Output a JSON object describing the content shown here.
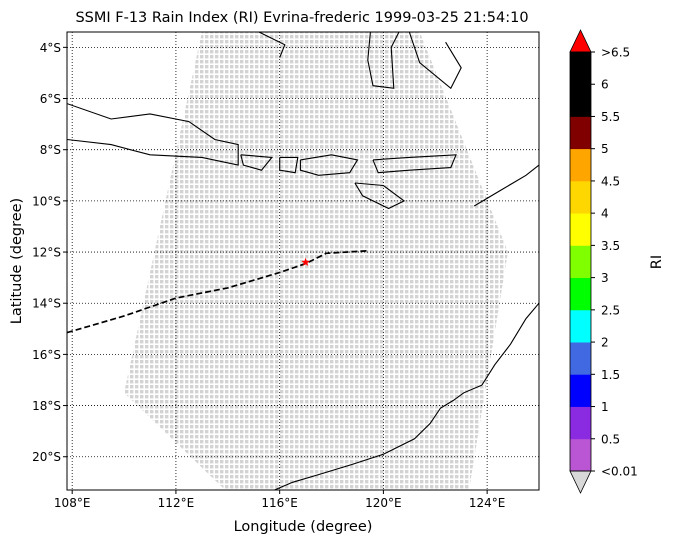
{
  "chart_data": {
    "type": "map",
    "title": "SSMI F-13 Rain Index (RI) Evrina-frederic 1999-03-25 21:54:10",
    "xlabel": "Longitude (degree)",
    "ylabel": "Latitude (degree)",
    "xlim": [
      107.8,
      126.0
    ],
    "ylim": [
      -21.3,
      -3.4
    ],
    "xticks": [
      {
        "value": 108,
        "label": "108°E"
      },
      {
        "value": 112,
        "label": "112°E"
      },
      {
        "value": 116,
        "label": "116°E"
      },
      {
        "value": 120,
        "label": "120°E"
      },
      {
        "value": 124,
        "label": "124°E"
      }
    ],
    "yticks": [
      {
        "value": -4,
        "label": "4°S"
      },
      {
        "value": -6,
        "label": "6°S"
      },
      {
        "value": -8,
        "label": "8°S"
      },
      {
        "value": -10,
        "label": "10°S"
      },
      {
        "value": -12,
        "label": "12°S"
      },
      {
        "value": -14,
        "label": "14°S"
      },
      {
        "value": -16,
        "label": "16°S"
      },
      {
        "value": -18,
        "label": "18°S"
      },
      {
        "value": -20,
        "label": "20°S"
      }
    ],
    "grid": true,
    "swath": {
      "color": "#d3d3d3",
      "corners": [
        {
          "lon": 113.0,
          "lat": -3.4
        },
        {
          "lon": 121.4,
          "lat": -3.4
        },
        {
          "lon": 124.8,
          "lat": -12.0
        },
        {
          "lon": 123.3,
          "lat": -21.3
        },
        {
          "lon": 113.9,
          "lat": -21.3
        },
        {
          "lon": 110.0,
          "lat": -17.5
        }
      ]
    },
    "track": {
      "style": "dashed",
      "color": "#000000",
      "points": [
        {
          "lon": 107.8,
          "lat": -15.15
        },
        {
          "lon": 110.0,
          "lat": -14.5
        },
        {
          "lon": 112.0,
          "lat": -13.8
        },
        {
          "lon": 114.0,
          "lat": -13.4
        },
        {
          "lon": 116.0,
          "lat": -12.8
        },
        {
          "lon": 117.0,
          "lat": -12.45
        },
        {
          "lon": 117.8,
          "lat": -12.05
        },
        {
          "lon": 119.4,
          "lat": -11.95
        }
      ]
    },
    "marker": {
      "lon": 117.0,
      "lat": -12.4,
      "symbol": "star",
      "color": "#ff0000"
    },
    "coastlines": [
      [
        {
          "lon": 107.8,
          "lat": -6.2
        },
        {
          "lon": 109.5,
          "lat": -6.8
        },
        {
          "lon": 111.0,
          "lat": -6.6
        },
        {
          "lon": 112.5,
          "lat": -6.9
        },
        {
          "lon": 113.5,
          "lat": -7.6
        },
        {
          "lon": 114.4,
          "lat": -7.8
        },
        {
          "lon": 114.4,
          "lat": -8.6
        },
        {
          "lon": 113.0,
          "lat": -8.3
        },
        {
          "lon": 111.0,
          "lat": -8.2
        },
        {
          "lon": 109.5,
          "lat": -7.8
        },
        {
          "lon": 107.8,
          "lat": -7.6
        }
      ],
      [
        {
          "lon": 114.5,
          "lat": -8.2
        },
        {
          "lon": 115.7,
          "lat": -8.3
        },
        {
          "lon": 115.3,
          "lat": -8.8
        },
        {
          "lon": 114.6,
          "lat": -8.6
        },
        {
          "lon": 114.5,
          "lat": -8.2
        }
      ],
      [
        {
          "lon": 116.0,
          "lat": -8.3
        },
        {
          "lon": 116.7,
          "lat": -8.3
        },
        {
          "lon": 116.6,
          "lat": -8.9
        },
        {
          "lon": 116.0,
          "lat": -8.8
        },
        {
          "lon": 116.0,
          "lat": -8.3
        }
      ],
      [
        {
          "lon": 116.8,
          "lat": -8.4
        },
        {
          "lon": 118.0,
          "lat": -8.2
        },
        {
          "lon": 119.0,
          "lat": -8.4
        },
        {
          "lon": 118.7,
          "lat": -8.9
        },
        {
          "lon": 117.5,
          "lat": -9.0
        },
        {
          "lon": 116.8,
          "lat": -8.8
        },
        {
          "lon": 116.8,
          "lat": -8.4
        }
      ],
      [
        {
          "lon": 119.6,
          "lat": -8.4
        },
        {
          "lon": 121.0,
          "lat": -8.3
        },
        {
          "lon": 122.8,
          "lat": -8.2
        },
        {
          "lon": 122.6,
          "lat": -8.7
        },
        {
          "lon": 121.0,
          "lat": -8.8
        },
        {
          "lon": 119.8,
          "lat": -8.9
        },
        {
          "lon": 119.6,
          "lat": -8.4
        }
      ],
      [
        {
          "lon": 118.9,
          "lat": -9.3
        },
        {
          "lon": 120.0,
          "lat": -9.4
        },
        {
          "lon": 120.8,
          "lat": -10.0
        },
        {
          "lon": 120.2,
          "lat": -10.3
        },
        {
          "lon": 119.2,
          "lat": -9.8
        },
        {
          "lon": 118.9,
          "lat": -9.3
        }
      ],
      [
        {
          "lon": 123.5,
          "lat": -10.2
        },
        {
          "lon": 124.5,
          "lat": -9.6
        },
        {
          "lon": 125.5,
          "lat": -9.0
        },
        {
          "lon": 126.0,
          "lat": -8.6
        }
      ],
      [
        {
          "lon": 115.2,
          "lat": -3.4
        },
        {
          "lon": 116.2,
          "lat": -3.9
        },
        {
          "lon": 116.0,
          "lat": -4.4
        }
      ],
      [
        {
          "lon": 119.5,
          "lat": -3.4
        },
        {
          "lon": 119.4,
          "lat": -4.5
        },
        {
          "lon": 119.6,
          "lat": -5.5
        },
        {
          "lon": 120.4,
          "lat": -5.6
        },
        {
          "lon": 120.3,
          "lat": -4.0
        },
        {
          "lon": 120.6,
          "lat": -3.4
        }
      ],
      [
        {
          "lon": 121.0,
          "lat": -3.4
        },
        {
          "lon": 121.4,
          "lat": -4.6
        },
        {
          "lon": 122.6,
          "lat": -5.6
        },
        {
          "lon": 123.0,
          "lat": -4.8
        },
        {
          "lon": 122.4,
          "lat": -3.8
        }
      ],
      [
        {
          "lon": 123.8,
          "lat": -17.2
        },
        {
          "lon": 123.1,
          "lat": -17.5
        },
        {
          "lon": 122.7,
          "lat": -17.8
        },
        {
          "lon": 122.2,
          "lat": -18.1
        },
        {
          "lon": 121.8,
          "lat": -18.7
        },
        {
          "lon": 121.2,
          "lat": -19.3
        },
        {
          "lon": 120.0,
          "lat": -19.9
        },
        {
          "lon": 118.8,
          "lat": -20.3
        },
        {
          "lon": 117.5,
          "lat": -20.7
        },
        {
          "lon": 116.5,
          "lat": -21.0
        },
        {
          "lon": 115.8,
          "lat": -21.3
        }
      ],
      [
        {
          "lon": 123.8,
          "lat": -17.2
        },
        {
          "lon": 124.3,
          "lat": -16.4
        },
        {
          "lon": 124.9,
          "lat": -15.6
        },
        {
          "lon": 125.5,
          "lat": -14.6
        },
        {
          "lon": 126.0,
          "lat": -14.0
        }
      ]
    ],
    "colorbar": {
      "label": "RI",
      "under_color": "#d8d8d8",
      "over_color": "#ff0000",
      "colors": [
        "#ba55d3",
        "#8a2be2",
        "#0000ff",
        "#4169e1",
        "#00ffff",
        "#00ff00",
        "#7fff00",
        "#ffff00",
        "#ffd700",
        "#ffa500",
        "#800000",
        "#000000",
        "#000000"
      ],
      "tick_labels": [
        "<0.01",
        "0.5",
        "1",
        "1.5",
        "2",
        "2.5",
        "3",
        "3.5",
        "4",
        "4.5",
        "5",
        "5.5",
        "6",
        ">6.5"
      ]
    }
  }
}
